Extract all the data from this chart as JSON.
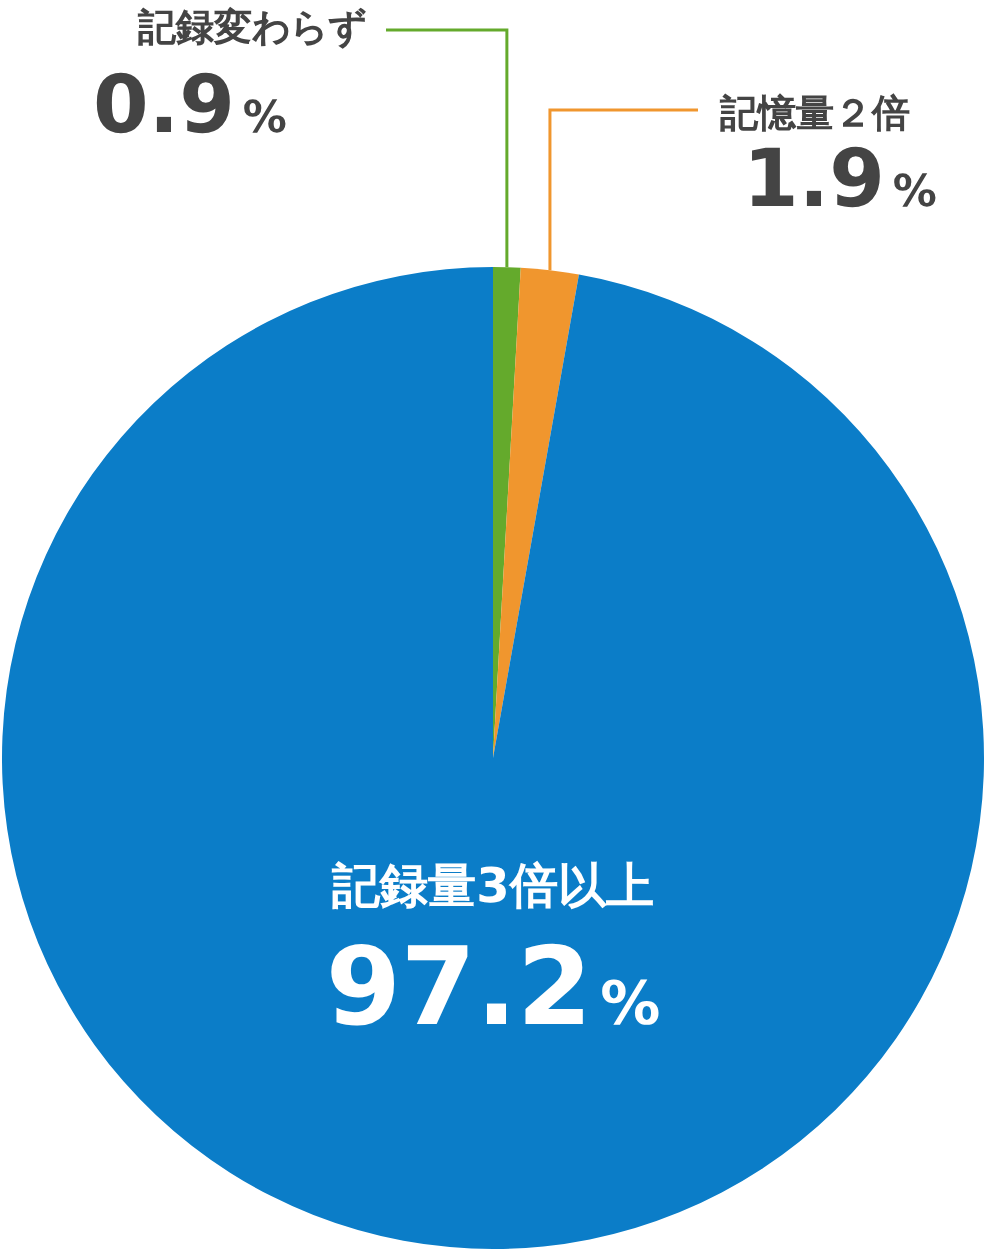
{
  "chart_data": {
    "type": "pie",
    "categories": [
      "記録変わらず",
      "記憶量２倍",
      "記録量3倍以上"
    ],
    "values": [
      0.9,
      1.9,
      97.2
    ],
    "colors": [
      "#64aa2c",
      "#f0962e",
      "#0b7dc8"
    ],
    "value_labels": [
      "0.9%",
      "1.9%",
      "97.2%"
    ],
    "legend": false
  }
}
